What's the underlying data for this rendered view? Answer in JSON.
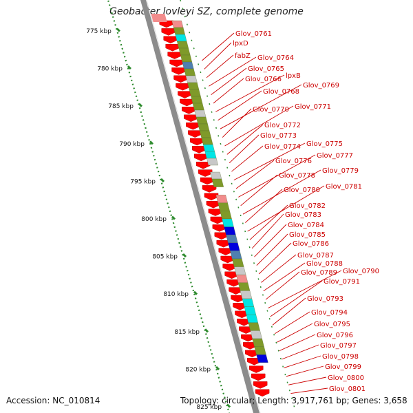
{
  "title": "Geobacter lovleyi SZ, complete genome",
  "footer": {
    "accession": "Accession: NC_010814",
    "summary": "Topology: circular; Length: 3,917,761 bp; Genes: 3,658"
  },
  "colors": {
    "forward_gene": "#ff0000",
    "ruler": "#2e8b2e",
    "backbone": "#8c8c8c",
    "olive": "#7f9a2a",
    "cyan": "#00e5e5",
    "blue": "#0000dd",
    "steel": "#4f7fb0",
    "grey": "#c8c8c8",
    "pink": "#f28c8c",
    "label": "#cc0000"
  },
  "kbp_ticks": [
    "775 kbp",
    "780 kbp",
    "785 kbp",
    "790 kbp",
    "795 kbp",
    "800 kbp",
    "805 kbp",
    "810 kbp",
    "815 kbp",
    "820 kbp",
    "825 kbp"
  ],
  "gene_labels": [
    "Glov_0761",
    "lpxD",
    "fabZ",
    "Glov_0764",
    "Glov_0765",
    "Glov_0766",
    "lpxB",
    "Glov_0768",
    "Glov_0769",
    "Glov_0770",
    "Glov_0771",
    "Glov_0772",
    "Glov_0773",
    "Glov_0774",
    "Glov_0775",
    "Glov_0776",
    "Glov_0777",
    "Glov_0778",
    "Glov_0779",
    "Glov_0780",
    "Glov_0781",
    "Glov_0782",
    "Glov_0783",
    "Glov_0784",
    "Glov_0785",
    "Glov_0786",
    "Glov_0787",
    "Glov_0788",
    "Glov_0789",
    "Glov_0790",
    "Glov_0791",
    "Glov_0793",
    "Glov_0794",
    "Glov_0795",
    "Glov_0796",
    "Glov_0797",
    "Glov_0798",
    "Glov_0799",
    "Glov_0800",
    "Glov_0801"
  ],
  "cog_track": [
    "pink",
    "olive",
    "cyan",
    "olive",
    "olive",
    "olive",
    "steel",
    "olive",
    "grey",
    "olive",
    "olive",
    "olive",
    "olive",
    "grey",
    "olive",
    "olive",
    "olive",
    "olive",
    "cyan",
    "cyan",
    "grey",
    "gap",
    "grey",
    "olive",
    "gap",
    "pink",
    "olive",
    "olive",
    "cyan",
    "blue",
    "steel",
    "blue",
    "steel",
    "olive",
    "grey",
    "pink",
    "olive",
    "grey",
    "cyan",
    "cyan",
    "cyan",
    "olive",
    "grey",
    "olive",
    "olive",
    "blue"
  ]
}
